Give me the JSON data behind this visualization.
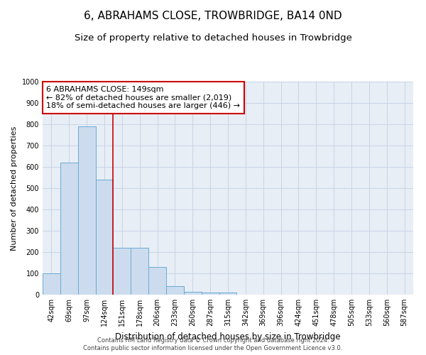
{
  "title": "6, ABRAHAMS CLOSE, TROWBRIDGE, BA14 0ND",
  "subtitle": "Size of property relative to detached houses in Trowbridge",
  "xlabel": "Distribution of detached houses by size in Trowbridge",
  "ylabel": "Number of detached properties",
  "categories": [
    "42sqm",
    "69sqm",
    "97sqm",
    "124sqm",
    "151sqm",
    "178sqm",
    "206sqm",
    "233sqm",
    "260sqm",
    "287sqm",
    "315sqm",
    "342sqm",
    "369sqm",
    "396sqm",
    "424sqm",
    "451sqm",
    "478sqm",
    "505sqm",
    "533sqm",
    "560sqm",
    "587sqm"
  ],
  "values": [
    100,
    620,
    790,
    540,
    220,
    220,
    130,
    40,
    15,
    10,
    10,
    0,
    0,
    0,
    0,
    0,
    0,
    0,
    0,
    0,
    0
  ],
  "bar_color": "#ccdcee",
  "bar_edge_color": "#6aaad4",
  "vline_color": "#cc0000",
  "annotation_text": "6 ABRAHAMS CLOSE: 149sqm\n← 82% of detached houses are smaller (2,019)\n18% of semi-detached houses are larger (446) →",
  "annotation_box_color": "#ffffff",
  "annotation_box_edge": "#cc0000",
  "ylim": [
    0,
    1000
  ],
  "yticks": [
    0,
    100,
    200,
    300,
    400,
    500,
    600,
    700,
    800,
    900,
    1000
  ],
  "grid_color": "#c8d4e4",
  "bg_color": "#e8eef6",
  "footer1": "Contains HM Land Registry data © Crown copyright and database right 2024.",
  "footer2": "Contains public sector information licensed under the Open Government Licence v3.0.",
  "title_fontsize": 11,
  "subtitle_fontsize": 9.5,
  "annotation_fontsize": 8,
  "xlabel_fontsize": 8.5,
  "ylabel_fontsize": 8,
  "tick_fontsize": 7,
  "footer_fontsize": 6
}
